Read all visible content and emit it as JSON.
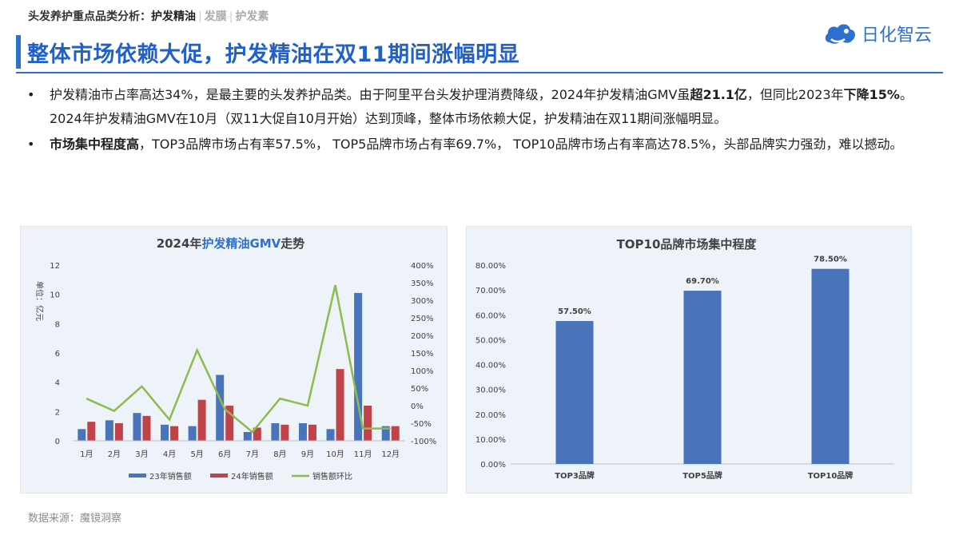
{
  "header": {
    "crumb_prefix": "头发养护重点品类分析：",
    "crumb_active": "护发精油",
    "crumb_item_2": "发膜",
    "crumb_item_3": "护发素",
    "title": "整体市场依赖大促，护发精油在双11期间涨幅明显",
    "logo_text": "日化智云"
  },
  "bullets": [
    {
      "dot": "•",
      "t1": "护发精油市占率高达34%，是最主要的头发养护品类。由于阿里平台头发护理消费降级，2024年护发精油GMV虽",
      "b1": "超21.1亿",
      "t2": "，但同比2023年",
      "b2": "下降15%",
      "t3": "。2024年护发精油GMV在10月（双11大促自10月开始）达到顶峰，整体市场依赖大促，护发精油在双11期间涨幅明显。"
    },
    {
      "dot": "•",
      "b1": "市场集中程度高",
      "t1": "，TOP3品牌市场占有率57.5%， TOP5品牌市场占有率69.7%， TOP10品牌市场占有率高达78.5%，头部品牌实力强劲，难以撼动。"
    }
  ],
  "source": "数据来源：魔镜洞察",
  "colors": {
    "accent": "#2f6fcf",
    "series_23": "#4a74b9",
    "series_24": "#c0434a",
    "series_mom": "#8cbb4e",
    "bar_top": "#4a74b9"
  },
  "chart_data": [
    {
      "type": "bar",
      "title_pre": "2024年",
      "title_hl": "护发精油GMV",
      "title_post": "走势",
      "ylabel": "单位：亿元",
      "categories": [
        "1月",
        "2月",
        "3月",
        "4月",
        "5月",
        "6月",
        "7月",
        "8月",
        "9月",
        "10月",
        "11月",
        "12月"
      ],
      "ylim": [
        0,
        12
      ],
      "yticks": [
        0,
        2,
        4,
        6,
        8,
        10,
        12
      ],
      "y2lim": [
        -100,
        400
      ],
      "y2ticks": [
        -100,
        -50,
        0,
        50,
        100,
        150,
        200,
        250,
        300,
        350,
        400
      ],
      "y2tick_suffix": "%",
      "series": [
        {
          "name": "23年销售额",
          "kind": "bar",
          "values": [
            0.8,
            1.4,
            1.9,
            1.1,
            1.0,
            4.5,
            0.6,
            1.2,
            1.2,
            0.8,
            10.1,
            1.0
          ]
        },
        {
          "name": "24年销售额",
          "kind": "bar",
          "values": [
            1.3,
            1.2,
            1.7,
            1.0,
            2.8,
            2.4,
            0.9,
            1.1,
            1.1,
            4.9,
            2.4,
            1.0
          ]
        },
        {
          "name": "销售额环比",
          "kind": "line",
          "axis": "right",
          "values": [
            20,
            -15,
            55,
            -40,
            158,
            -10,
            -75,
            20,
            0,
            343,
            -65,
            -65
          ]
        }
      ]
    },
    {
      "type": "bar",
      "title": "TOP10品牌市场集中程度",
      "categories": [
        "TOP3品牌",
        "TOP5品牌",
        "TOP10品牌"
      ],
      "values": [
        57.5,
        69.7,
        78.5
      ],
      "labels": [
        "57.50%",
        "69.70%",
        "78.50%"
      ],
      "ylim": [
        0,
        80
      ],
      "yticks": [
        0,
        10,
        20,
        30,
        40,
        50,
        60,
        70,
        80
      ],
      "ytick_labels": [
        "0.00%",
        "10.00%",
        "20.00%",
        "30.00%",
        "40.00%",
        "50.00%",
        "60.00%",
        "70.00%",
        "80.00%"
      ]
    }
  ]
}
